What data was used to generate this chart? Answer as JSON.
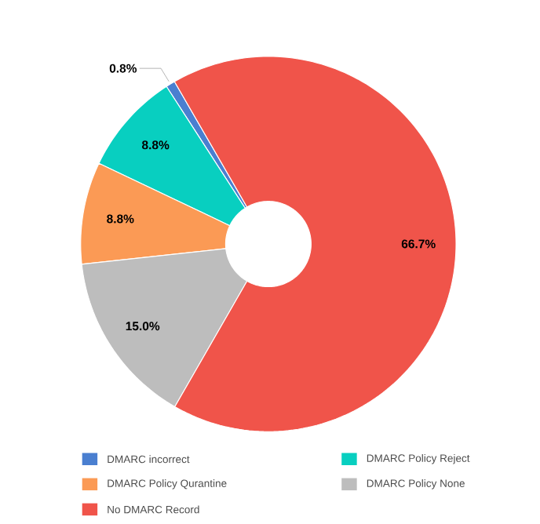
{
  "chart_data": {
    "type": "donut",
    "categories": [
      "DMARC incorrect",
      "DMARC Policy Reject",
      "DMARC Policy Qurantine",
      "DMARC Policy None",
      "No DMARC Record"
    ],
    "values": [
      0.8,
      8.8,
      8.8,
      15.0,
      66.7
    ],
    "colors": [
      "#4a7fd0",
      "#08cfc0",
      "#fb9a55",
      "#bdbdbd",
      "#f0544a"
    ],
    "value_labels": [
      "0.8%",
      "8.8%",
      "8.8%",
      "15.0%",
      "66.7%"
    ],
    "legend": "bottom"
  }
}
